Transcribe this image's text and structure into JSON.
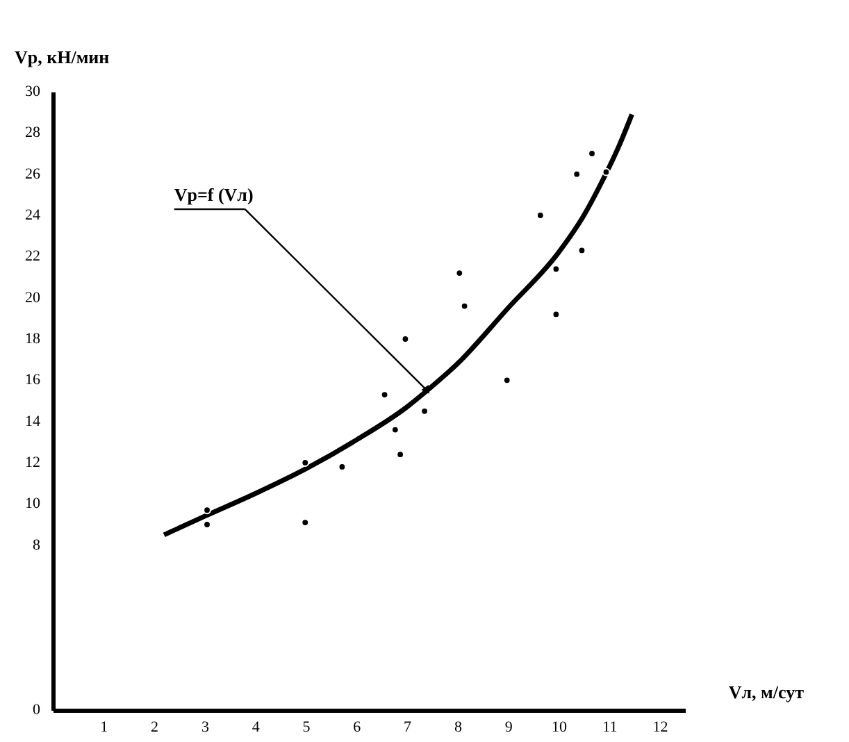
{
  "chart_data": {
    "type": "scatter",
    "xlabel": "Vл, м/сут",
    "ylabel": "Vp, кН/мин",
    "xlim": [
      0,
      12.5
    ],
    "xticks": [
      1,
      2,
      3,
      4,
      5,
      6,
      7,
      8,
      9,
      10,
      11,
      12
    ],
    "ylim": [
      0,
      30
    ],
    "yticks": [
      0,
      8,
      10,
      12,
      14,
      16,
      18,
      20,
      22,
      24,
      26,
      28,
      30
    ],
    "grid": false,
    "marker": "circle",
    "annotations": [
      {
        "text": "Vp=f (Vл)",
        "x": 7.4,
        "y": 15.5
      }
    ],
    "series": [
      {
        "type": "scatter",
        "color": "#000000",
        "x": [
          3.05,
          3.05,
          4.99,
          4.99,
          5.72,
          6.56,
          6.77,
          6.87,
          6.97,
          7.35,
          8.04,
          8.14,
          8.98,
          9.64,
          9.95,
          9.95,
          10.36,
          10.46,
          10.66,
          10.94
        ],
        "values": [
          9.7,
          9.0,
          12.0,
          9.1,
          11.8,
          15.3,
          13.6,
          12.4,
          18.0,
          14.5,
          21.2,
          19.6,
          16.0,
          24.0,
          21.4,
          19.2,
          26.0,
          22.3,
          27.0,
          26.1
        ]
      },
      {
        "type": "line",
        "color": "#000000",
        "line_style": "solid",
        "marker": "none",
        "x": [
          2.2,
          3,
          4,
          5,
          6,
          7,
          7.4,
          8,
          9,
          10,
          10.5,
          10.85,
          11.2,
          11.45
        ],
        "values": [
          8.5,
          9.4,
          10.5,
          11.7,
          13.1,
          14.7,
          15.5,
          16.8,
          19.5,
          22.2,
          24.0,
          25.6,
          27.4,
          28.9
        ]
      }
    ]
  }
}
